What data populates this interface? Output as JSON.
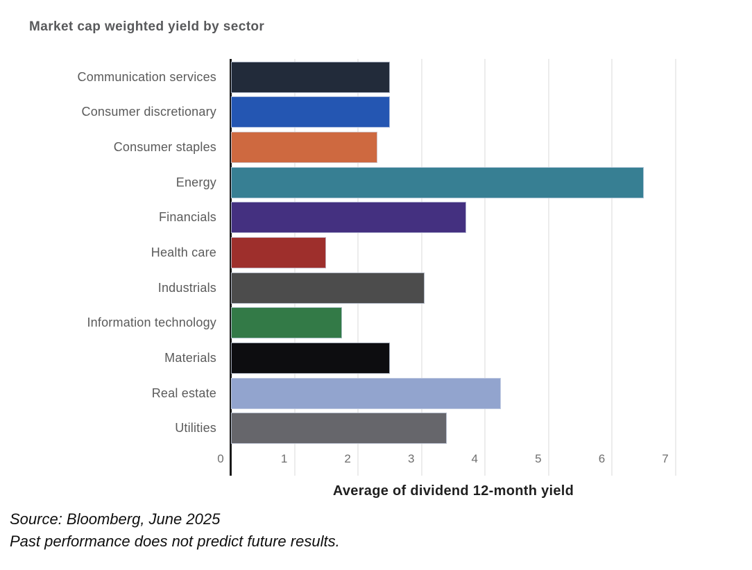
{
  "title": "Market cap weighted yield by sector",
  "x_axis": {
    "label": "Average of dividend 12-month yield",
    "ticks": [
      0,
      1,
      2,
      3,
      4,
      5,
      6,
      7
    ],
    "min": 0,
    "max": 7
  },
  "source": {
    "line1": "Source: Bloomberg, June 2025",
    "line2": "Past performance does not predict future results."
  },
  "colors": {
    "gridline": "#ececec",
    "axis_line": "#1a1a1a",
    "title_text": "#58595b",
    "label_text": "#5a5a5a",
    "tick_text": "#6e6e6e"
  },
  "chart_data": {
    "type": "bar",
    "orientation": "horizontal",
    "title": "Market cap weighted yield by sector",
    "xlabel": "Average of dividend 12-month yield",
    "ylabel": "",
    "xlim": [
      0,
      7
    ],
    "grid": "vertical-light",
    "categories": [
      "Communication services",
      "Consumer discretionary",
      "Consumer staples",
      "Energy",
      "Financials",
      "Health care",
      "Industrials",
      "Information technology",
      "Materials",
      "Real estate",
      "Utilities"
    ],
    "values": [
      2.5,
      2.5,
      2.3,
      6.5,
      3.7,
      1.5,
      3.05,
      1.75,
      2.5,
      4.25,
      3.4
    ],
    "bar_colors": [
      "#222b3a",
      "#2456b2",
      "#ce6940",
      "#377f93",
      "#443080",
      "#9e2f2c",
      "#4c4c4c",
      "#337a47",
      "#0d0d10",
      "#92a4ce",
      "#66666b"
    ]
  }
}
